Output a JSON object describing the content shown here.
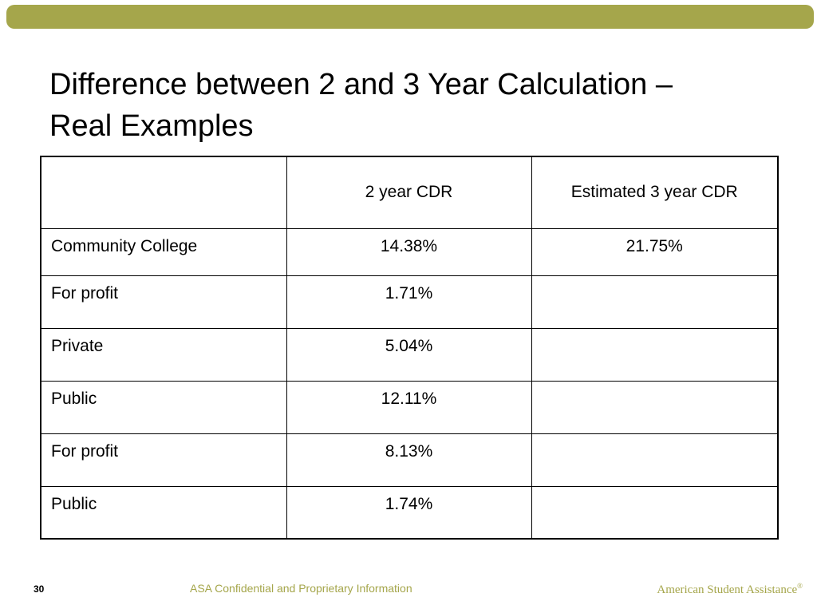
{
  "colors": {
    "accent_bar": "#a5a64b",
    "footer_text": "#a5a64b",
    "table_border": "#000000"
  },
  "slide": {
    "title_line1": "Difference between 2 and 3 Year Calculation –",
    "title_line2": "Real Examples"
  },
  "table": {
    "headers": [
      "",
      "2 year CDR",
      "Estimated 3 year CDR"
    ],
    "rows": [
      {
        "label": "Community College",
        "two_year": "14.38%",
        "three_year": "21.75%"
      },
      {
        "label": "For profit",
        "two_year": "1.71%",
        "three_year": ""
      },
      {
        "label": "Private",
        "two_year": "5.04%",
        "three_year": ""
      },
      {
        "label": "Public",
        "two_year": "12.11%",
        "three_year": ""
      },
      {
        "label": "For profit",
        "two_year": "8.13%",
        "three_year": ""
      },
      {
        "label": "Public",
        "two_year": "1.74%",
        "three_year": ""
      }
    ]
  },
  "footer": {
    "page_number": "30",
    "confidential": "ASA Confidential and Proprietary Information",
    "brand": "American Student Assistance",
    "brand_mark": "®"
  }
}
